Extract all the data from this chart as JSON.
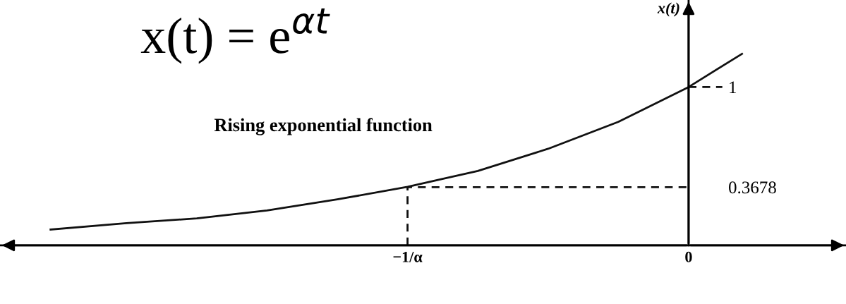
{
  "chart_data": {
    "type": "line",
    "ylabel": "x(t)",
    "annotations": [
      "x(t) = e$^{αt}$",
      "Rising exponential function"
    ],
    "series": [
      {
        "color": "#111111",
        "line_style": "solid",
        "x": [
          -2.27,
          -2.0,
          -1.75,
          -1.5,
          -1.25,
          -1.0,
          -0.75,
          -0.5,
          -0.25,
          0.0,
          0.19
        ],
        "values": [
          0.1,
          0.14,
          0.17,
          0.22,
          0.29,
          0.37,
          0.47,
          0.61,
          0.78,
          1.0,
          1.21
        ]
      },
      {
        "color": "#111111",
        "line_style": "dashed",
        "x": [
          -1.0,
          -1.0,
          0.0
        ],
        "values": [
          0.0,
          0.3678,
          0.3678
        ]
      },
      {
        "color": "#111111",
        "line_style": "dashed",
        "x": [
          0.0,
          0.12
        ],
        "values": [
          1.0,
          1.0
        ]
      }
    ],
    "xlim": [
      -2.45,
      0.56
    ],
    "ylim": [
      0,
      1.55
    ],
    "xticks": [
      {
        "value": -1,
        "label": "−1/α"
      },
      {
        "value": 0,
        "label": "0"
      }
    ],
    "yticks": [
      {
        "value": 0.3678,
        "label": "0.3678"
      },
      {
        "value": 1,
        "label": "1"
      }
    ],
    "grid": false,
    "marker": "none"
  }
}
